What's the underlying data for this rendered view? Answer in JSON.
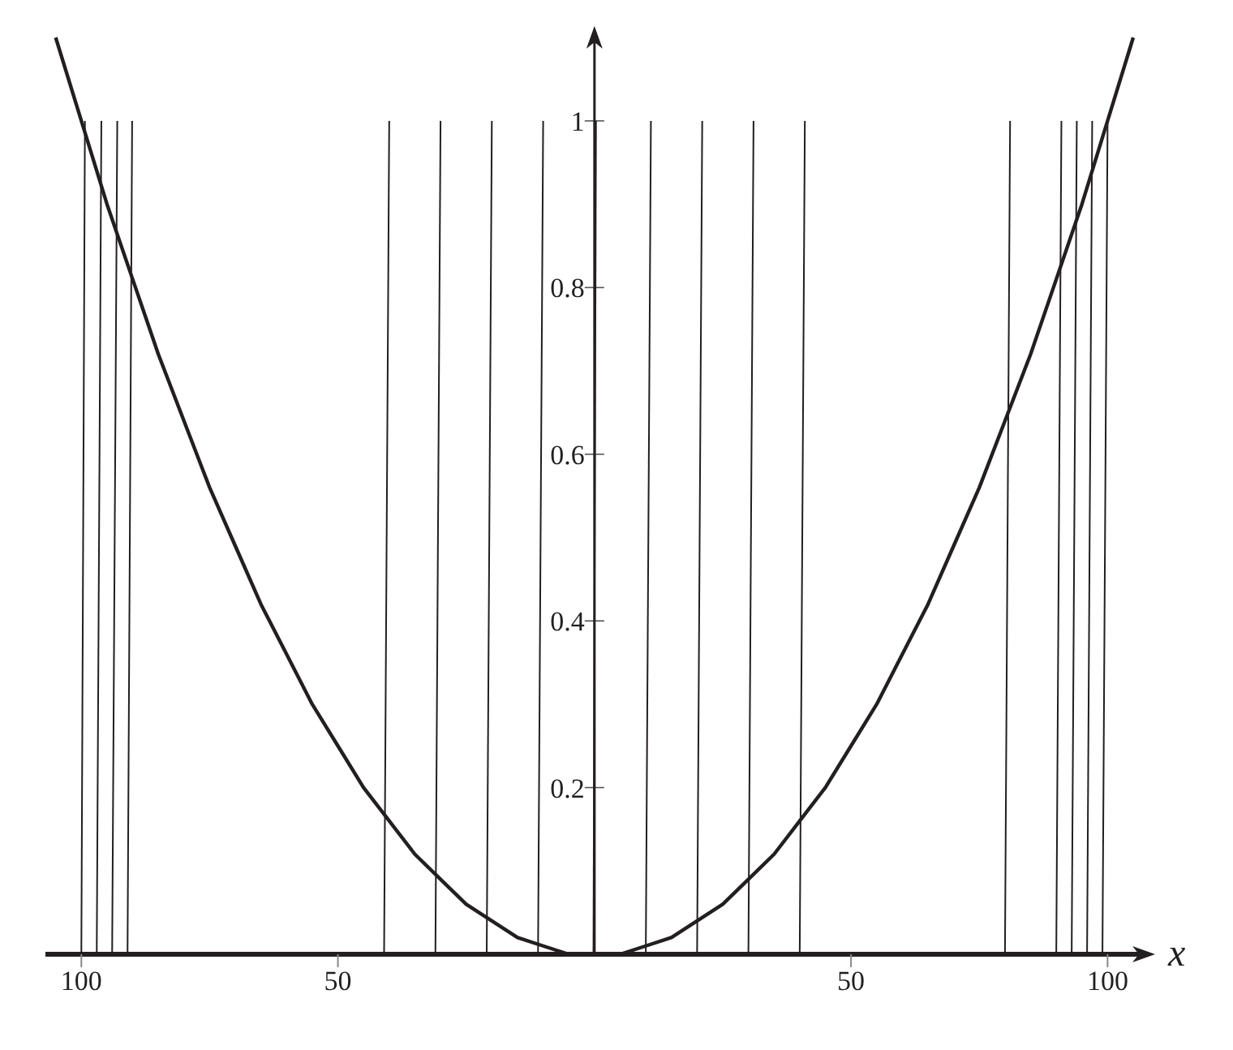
{
  "chart_data": {
    "type": "line",
    "xlabel": "x",
    "xlim": [
      -107,
      108
    ],
    "ylim": [
      0,
      1.11
    ],
    "xticks": [
      {
        "value": -100,
        "label": "100"
      },
      {
        "value": -50,
        "label": "50"
      },
      {
        "value": 50,
        "label": "50"
      },
      {
        "value": 100,
        "label": "100"
      }
    ],
    "yticks": [
      0.2,
      0.4,
      0.6,
      0.8,
      1
    ],
    "grid": false,
    "legend": false,
    "marker": "none",
    "line_style": "solid",
    "series": [
      {
        "color": "#231f20",
        "x": [
          -105,
          -100,
          -95,
          -90,
          -85,
          -80,
          -75,
          -70,
          -65,
          -60,
          -55,
          -50,
          -45,
          -40,
          -35,
          -30,
          -25,
          -20,
          -15,
          -10,
          -5,
          0,
          5,
          10,
          15,
          20,
          25,
          30,
          35,
          40,
          45,
          50,
          55,
          60,
          65,
          70,
          75,
          80,
          85,
          90,
          95,
          100,
          105
        ],
        "values": [
          1.1,
          1,
          0.9,
          0.81,
          0.72,
          0.64,
          0.56,
          0.49,
          0.42,
          0.36,
          0.3,
          0.25,
          0.2,
          0.16,
          0.12,
          0.09,
          0.06,
          0.04,
          0.02,
          0.01,
          0,
          0,
          0,
          0.01,
          0.02,
          0.04,
          0.06,
          0.09,
          0.12,
          0.16,
          0.2,
          0.25,
          0.3,
          0.36,
          0.42,
          0.49,
          0.56,
          0.64,
          0.72,
          0.81,
          0.9,
          1,
          1.1
        ]
      },
      {
        "color": "#231f20",
        "x": [
          -100,
          -99.3
        ],
        "values": [
          0,
          1
        ]
      },
      {
        "color": "#231f20",
        "x": [
          -97,
          -96.1
        ],
        "values": [
          0,
          1
        ]
      },
      {
        "color": "#231f20",
        "x": [
          -94,
          -93
        ],
        "values": [
          0,
          1
        ]
      },
      {
        "color": "#231f20",
        "x": [
          -91,
          -90.1
        ],
        "values": [
          0,
          1
        ]
      },
      {
        "color": "#231f20",
        "x": [
          -41,
          -40
        ],
        "values": [
          0,
          1
        ]
      },
      {
        "color": "#231f20",
        "x": [
          -31,
          -30
        ],
        "values": [
          0,
          1
        ]
      },
      {
        "color": "#231f20",
        "x": [
          -21,
          -20
        ],
        "values": [
          0,
          1
        ]
      },
      {
        "color": "#231f20",
        "x": [
          -11,
          -10
        ],
        "values": [
          0,
          1
        ]
      },
      {
        "color": "#231f20",
        "x": [
          -0.2,
          0.3
        ],
        "values": [
          0,
          1
        ]
      },
      {
        "color": "#231f20",
        "x": [
          10,
          11
        ],
        "values": [
          0,
          1
        ]
      },
      {
        "color": "#231f20",
        "x": [
          20,
          21
        ],
        "values": [
          0,
          1
        ]
      },
      {
        "color": "#231f20",
        "x": [
          30,
          31
        ],
        "values": [
          0,
          1
        ]
      },
      {
        "color": "#231f20",
        "x": [
          40,
          41
        ],
        "values": [
          0,
          1
        ]
      },
      {
        "color": "#231f20",
        "x": [
          80,
          81
        ],
        "values": [
          0,
          1
        ]
      },
      {
        "color": "#231f20",
        "x": [
          90,
          91
        ],
        "values": [
          0,
          1
        ]
      },
      {
        "color": "#231f20",
        "x": [
          93,
          94
        ],
        "values": [
          0,
          1
        ]
      },
      {
        "color": "#231f20",
        "x": [
          96,
          97
        ],
        "values": [
          0,
          1
        ]
      },
      {
        "color": "#231f20",
        "x": [
          99,
          100
        ],
        "values": [
          0,
          1
        ]
      }
    ]
  }
}
